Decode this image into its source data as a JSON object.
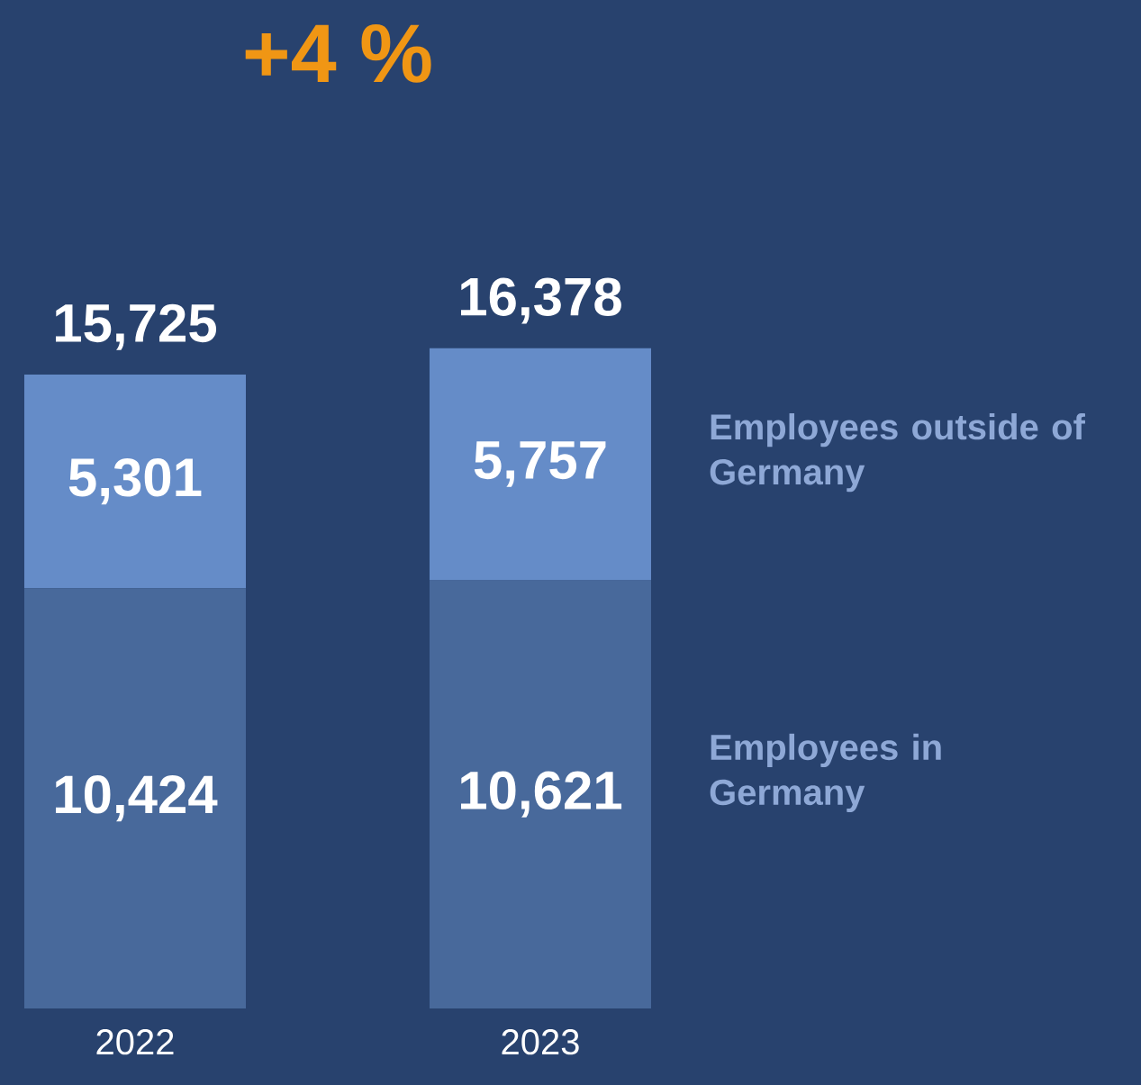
{
  "chart_data": {
    "type": "bar",
    "stacked": true,
    "title": "+4 %",
    "categories": [
      "2022",
      "2023"
    ],
    "series": [
      {
        "name": "Employees in Germany",
        "color": "#48699b",
        "values": [
          10424,
          10621
        ],
        "value_labels": [
          "10,424",
          "10,621"
        ]
      },
      {
        "name": "Employees outside of Germany",
        "color": "#658cc8",
        "values": [
          5301,
          5757
        ],
        "value_labels": [
          "5,301",
          "5,757"
        ]
      }
    ],
    "totals": [
      "15,725",
      "16,378"
    ],
    "legend": "right"
  }
}
